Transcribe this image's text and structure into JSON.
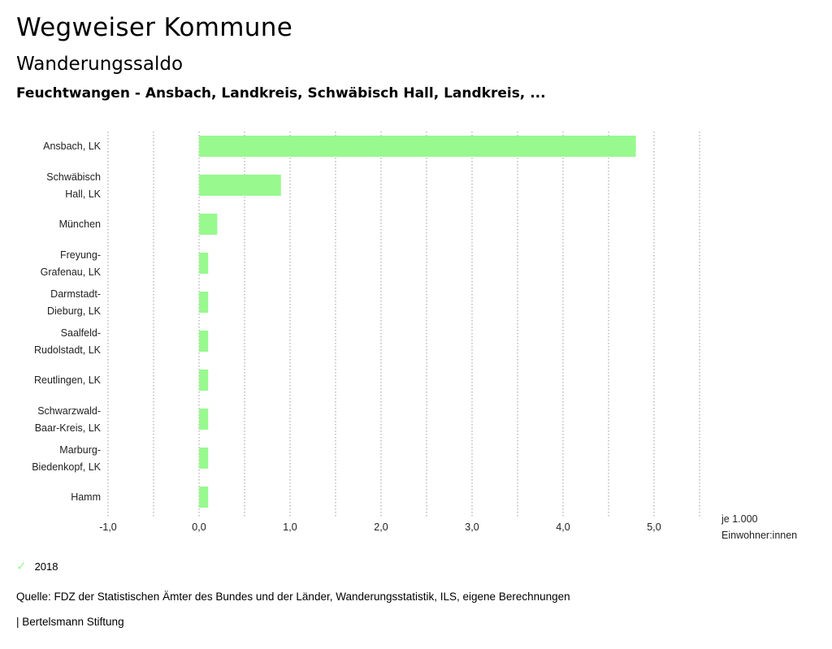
{
  "header": {
    "title": "Wegweiser Kommune",
    "subtitle": "Wanderungssaldo",
    "regions": "Feuchtwangen - Ansbach, Landkreis, Schwäbisch Hall, Landkreis, ..."
  },
  "chart_data": {
    "type": "bar",
    "orientation": "horizontal",
    "title": "Wanderungssaldo",
    "categories": [
      [
        "Ansbach, LK"
      ],
      [
        "Schwäbisch",
        "Hall, LK"
      ],
      [
        "München"
      ],
      [
        "Freyung-",
        "Grafenau, LK"
      ],
      [
        "Darmstadt-",
        "Dieburg, LK"
      ],
      [
        "Saalfeld-",
        "Rudolstadt, LK"
      ],
      [
        "Reutlingen, LK"
      ],
      [
        "Schwarzwald-",
        "Baar-Kreis, LK"
      ],
      [
        "Marburg-",
        "Biedenkopf, LK"
      ],
      [
        "Hamm"
      ]
    ],
    "series": [
      {
        "name": "2018",
        "color": "#98f98f",
        "values": [
          4.8,
          0.9,
          0.2,
          0.1,
          0.1,
          0.1,
          0.1,
          0.1,
          0.1,
          0.1
        ]
      }
    ],
    "xlim": [
      -1.0,
      5.5
    ],
    "ticks": [
      "-1,0",
      "0,0",
      "1,0",
      "2,0",
      "3,0",
      "4,0",
      "5,0"
    ],
    "tick_values": [
      -1,
      0,
      1,
      2,
      3,
      4,
      5
    ],
    "xlabel": [
      "je 1.000",
      "Einwohner:innen"
    ],
    "grid": "vertical dotted"
  },
  "legend": {
    "label": "2018",
    "color": "#98f98f"
  },
  "footer": {
    "source": "Quelle: FDZ der Statistischen Ämter des Bundes und der Länder, Wanderungsstatistik, ILS, eigene Berechnungen",
    "brand": "| Bertelsmann Stiftung"
  }
}
